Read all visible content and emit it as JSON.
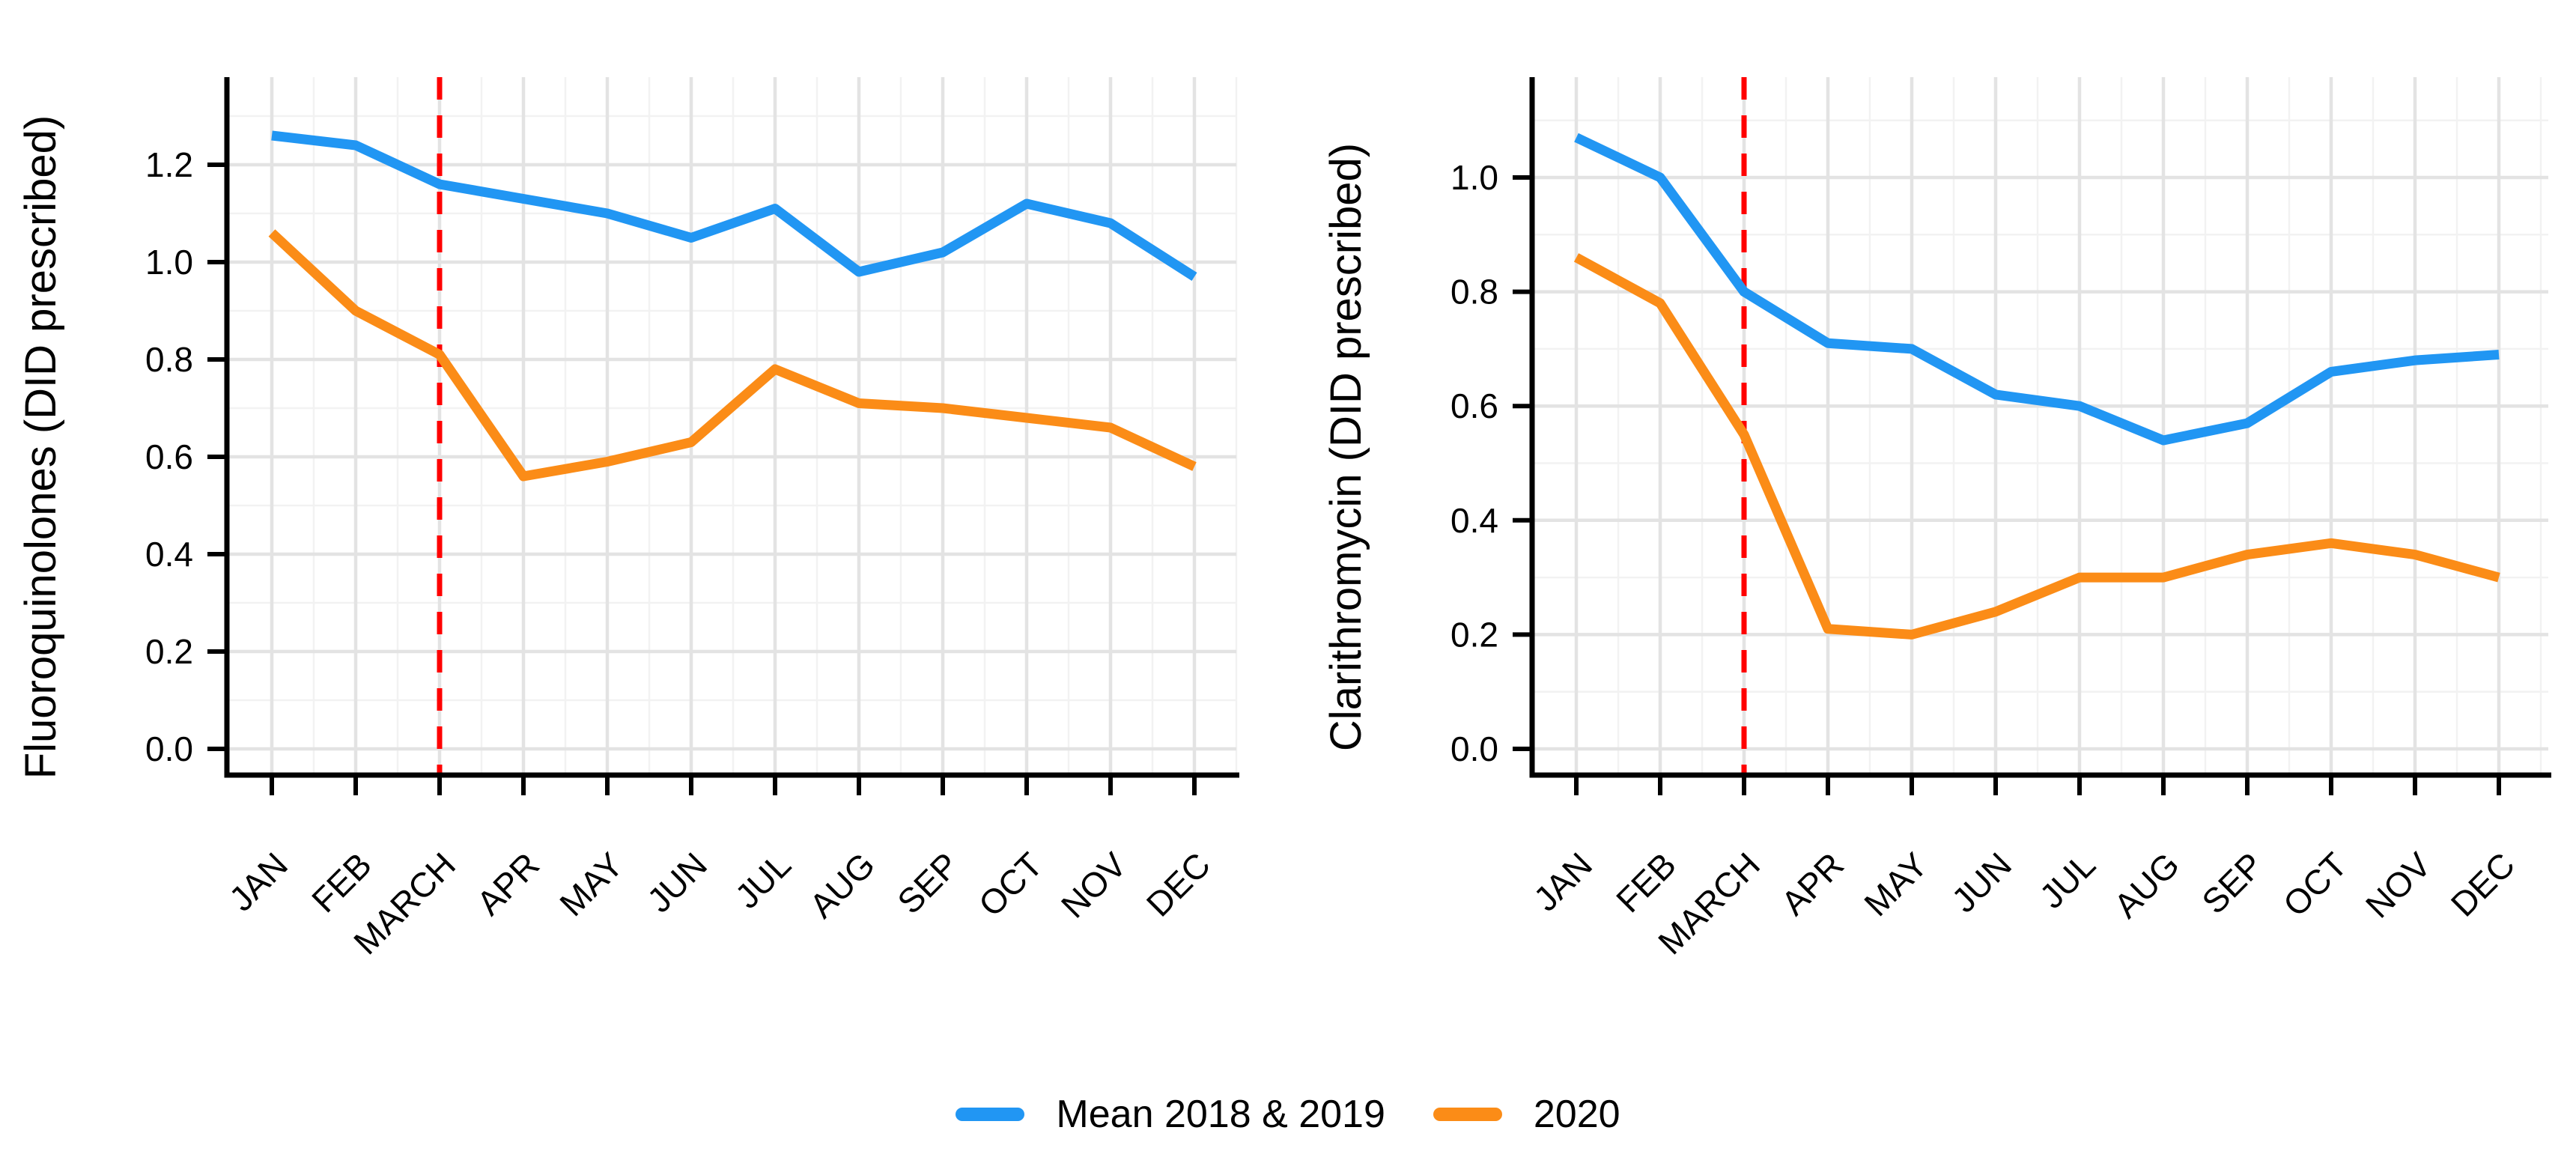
{
  "figure": {
    "background": "#ffffff"
  },
  "colors": {
    "series_mean": "#2196F3",
    "series_2020": "#FB8C17",
    "lockdown_line": "#FF0000",
    "grid_major": "#E3E3E3",
    "grid_minor": "#F2F2F2",
    "axis": "#000000",
    "text": "#000000"
  },
  "legend": {
    "items": [
      {
        "label": "Mean 2018 & 2019",
        "color": "#2196F3"
      },
      {
        "label": "2020",
        "color": "#FB8C17"
      }
    ]
  },
  "chart_data": [
    {
      "type": "line",
      "title": "",
      "ylabel": "Fluoroquinolones (DID prescribed)",
      "xlabel": "",
      "categories": [
        "JAN",
        "FEB",
        "MARCH",
        "APR",
        "MAY",
        "JUN",
        "JUL",
        "AUG",
        "SEP",
        "OCT",
        "NOV",
        "DEC"
      ],
      "series": [
        {
          "name": "Mean 2018 & 2019",
          "color": "#2196F3",
          "values": [
            1.26,
            1.24,
            1.16,
            1.13,
            1.1,
            1.05,
            1.11,
            0.98,
            1.02,
            1.12,
            1.08,
            0.97
          ]
        },
        {
          "name": "2020",
          "color": "#FB8C17",
          "values": [
            1.06,
            0.9,
            0.81,
            0.56,
            0.59,
            0.63,
            0.78,
            0.71,
            0.7,
            0.68,
            0.66,
            0.58
          ]
        }
      ],
      "yticks": [
        0.0,
        0.2,
        0.4,
        0.6,
        0.8,
        1.0,
        1.2
      ],
      "ylim": [
        -0.05,
        1.38
      ],
      "grid": "major+minor",
      "legend_position": "bottom",
      "annotations": {
        "vline": {
          "at_category": "MARCH",
          "style": "dashed",
          "color": "#FF0000"
        }
      }
    },
    {
      "type": "line",
      "title": "",
      "ylabel": "Clarithromycin (DID prescribed)",
      "xlabel": "",
      "categories": [
        "JAN",
        "FEB",
        "MARCH",
        "APR",
        "MAY",
        "JUN",
        "JUL",
        "AUG",
        "SEP",
        "OCT",
        "NOV",
        "DEC"
      ],
      "series": [
        {
          "name": "Mean 2018 & 2019",
          "color": "#2196F3",
          "values": [
            1.07,
            1.0,
            0.8,
            0.71,
            0.7,
            0.62,
            0.6,
            0.54,
            0.57,
            0.66,
            0.68,
            0.69
          ]
        },
        {
          "name": "2020",
          "color": "#FB8C17",
          "values": [
            0.86,
            0.78,
            0.55,
            0.21,
            0.2,
            0.24,
            0.3,
            0.3,
            0.34,
            0.36,
            0.34,
            0.3
          ]
        }
      ],
      "yticks": [
        0.0,
        0.2,
        0.4,
        0.6,
        0.8,
        1.0
      ],
      "ylim": [
        -0.05,
        1.18
      ],
      "grid": "major+minor",
      "legend_position": "bottom",
      "annotations": {
        "vline": {
          "at_category": "MARCH",
          "style": "dashed",
          "color": "#FF0000"
        }
      }
    }
  ]
}
